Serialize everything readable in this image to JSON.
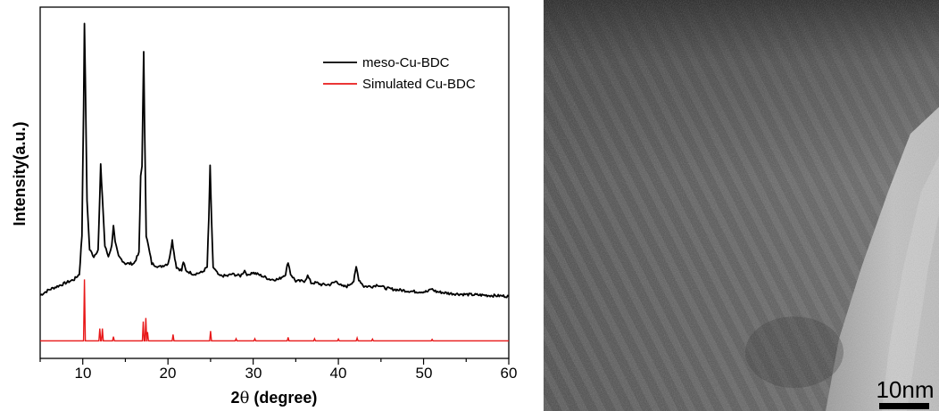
{
  "chart_data": [
    {
      "type": "line",
      "xlabel_main": "2",
      "xlabel_theta": "θ",
      "xlabel_unit": " (degree)",
      "ylabel": "Intensity(a.u.)",
      "xlim": [
        5,
        60
      ],
      "xticks": [
        "10",
        "20",
        "30",
        "40",
        "50",
        "60"
      ],
      "legend_position": "top-right",
      "series": [
        {
          "name": "meso-Cu-BDC",
          "color": "#000000",
          "baseline": 0.12,
          "points": [
            [
              5.0,
              0.18
            ],
            [
              6.0,
              0.195
            ],
            [
              7.0,
              0.205
            ],
            [
              8.0,
              0.215
            ],
            [
              9.0,
              0.225
            ],
            [
              9.6,
              0.24
            ],
            [
              9.9,
              0.35
            ],
            [
              10.1,
              0.72
            ],
            [
              10.2,
              0.95
            ],
            [
              10.3,
              0.8
            ],
            [
              10.5,
              0.45
            ],
            [
              10.8,
              0.31
            ],
            [
              11.3,
              0.29
            ],
            [
              11.8,
              0.31
            ],
            [
              12.0,
              0.46
            ],
            [
              12.1,
              0.55
            ],
            [
              12.3,
              0.46
            ],
            [
              12.6,
              0.32
            ],
            [
              13.0,
              0.29
            ],
            [
              13.4,
              0.32
            ],
            [
              13.6,
              0.38
            ],
            [
              13.8,
              0.33
            ],
            [
              14.2,
              0.29
            ],
            [
              15.0,
              0.27
            ],
            [
              16.0,
              0.27
            ],
            [
              16.6,
              0.3
            ],
            [
              16.8,
              0.52
            ],
            [
              16.95,
              0.55
            ],
            [
              17.05,
              0.7
            ],
            [
              17.15,
              0.87
            ],
            [
              17.25,
              0.68
            ],
            [
              17.45,
              0.35
            ],
            [
              17.7,
              0.32
            ],
            [
              17.85,
              0.3
            ],
            [
              18.1,
              0.27
            ],
            [
              19.0,
              0.26
            ],
            [
              20.0,
              0.27
            ],
            [
              20.3,
              0.3
            ],
            [
              20.5,
              0.34
            ],
            [
              20.7,
              0.3
            ],
            [
              21.0,
              0.26
            ],
            [
              21.6,
              0.25
            ],
            [
              21.8,
              0.275
            ],
            [
              22.1,
              0.25
            ],
            [
              23.0,
              0.24
            ],
            [
              24.0,
              0.245
            ],
            [
              24.6,
              0.26
            ],
            [
              24.8,
              0.4
            ],
            [
              24.95,
              0.55
            ],
            [
              25.1,
              0.4
            ],
            [
              25.3,
              0.26
            ],
            [
              26.0,
              0.235
            ],
            [
              27.0,
              0.235
            ],
            [
              27.5,
              0.24
            ],
            [
              28.5,
              0.235
            ],
            [
              29.0,
              0.25
            ],
            [
              29.4,
              0.235
            ],
            [
              29.8,
              0.245
            ],
            [
              30.5,
              0.24
            ],
            [
              31.0,
              0.235
            ],
            [
              32.0,
              0.225
            ],
            [
              33.0,
              0.225
            ],
            [
              33.8,
              0.24
            ],
            [
              34.1,
              0.275
            ],
            [
              34.4,
              0.24
            ],
            [
              35.0,
              0.22
            ],
            [
              36.0,
              0.22
            ],
            [
              36.4,
              0.235
            ],
            [
              36.8,
              0.215
            ],
            [
              37.5,
              0.215
            ],
            [
              38.0,
              0.21
            ],
            [
              39.0,
              0.21
            ],
            [
              39.8,
              0.22
            ],
            [
              40.4,
              0.205
            ],
            [
              41.0,
              0.205
            ],
            [
              41.8,
              0.22
            ],
            [
              42.1,
              0.26
            ],
            [
              42.4,
              0.225
            ],
            [
              43.0,
              0.205
            ],
            [
              44.0,
              0.205
            ],
            [
              44.6,
              0.21
            ],
            [
              45.5,
              0.2
            ],
            [
              47.0,
              0.195
            ],
            [
              49.0,
              0.19
            ],
            [
              50.5,
              0.19
            ],
            [
              50.9,
              0.198
            ],
            [
              51.5,
              0.19
            ],
            [
              53.0,
              0.185
            ],
            [
              55.0,
              0.182
            ],
            [
              57.0,
              0.18
            ],
            [
              59.0,
              0.178
            ],
            [
              60.0,
              0.177
            ]
          ]
        },
        {
          "name": "Simulated Cu-BDC",
          "color": "#e8191a",
          "baseline": 0.05,
          "peaks": [
            [
              10.2,
              0.175
            ],
            [
              12.0,
              0.035
            ],
            [
              12.3,
              0.035
            ],
            [
              13.6,
              0.012
            ],
            [
              17.1,
              0.055
            ],
            [
              17.4,
              0.065
            ],
            [
              17.6,
              0.025
            ],
            [
              20.6,
              0.018
            ],
            [
              25.0,
              0.028
            ],
            [
              28.0,
              0.006
            ],
            [
              30.2,
              0.006
            ],
            [
              34.1,
              0.01
            ],
            [
              37.2,
              0.006
            ],
            [
              40.0,
              0.005
            ],
            [
              42.2,
              0.008
            ],
            [
              44.0,
              0.005
            ],
            [
              51.0,
              0.004
            ]
          ]
        }
      ]
    },
    {
      "type": "image",
      "scale_bar_label": "10nm"
    }
  ]
}
